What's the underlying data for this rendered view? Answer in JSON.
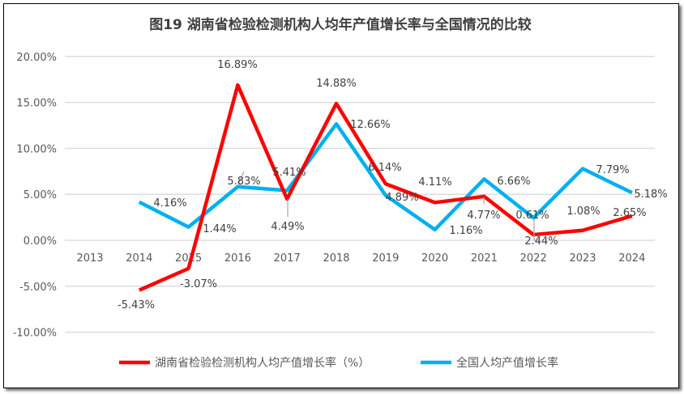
{
  "chart_data": {
    "type": "line",
    "title": "图19  湖南省检验检测机构人均年产值增长率与全国情况的比较",
    "categories": [
      "2013",
      "2014",
      "2015",
      "2016",
      "2017",
      "2018",
      "2019",
      "2020",
      "2021",
      "2022",
      "2023",
      "2024"
    ],
    "ylim": [
      -10,
      20
    ],
    "yticks": [
      "-10.00%",
      "-5.00%",
      "0.00%",
      "5.00%",
      "10.00%",
      "15.00%",
      "20.00%"
    ],
    "grid": true,
    "legend_position": "bottom",
    "series": [
      {
        "name": "湖南省检验检测机构人均产值增长率（%）",
        "color": "#FF0000",
        "values": [
          null,
          -5.43,
          -3.07,
          16.89,
          4.49,
          14.88,
          6.14,
          4.11,
          4.77,
          0.61,
          1.08,
          2.65
        ],
        "labels": [
          "",
          "-5.43%",
          "-3.07%",
          "16.89%",
          "4.49%",
          "14.88%",
          "6.14%",
          "4.11%",
          "4.77%",
          "0.61%",
          "1.08%",
          "2.65%"
        ]
      },
      {
        "name": "全国人均产值增长率",
        "color": "#00B0F0",
        "values": [
          null,
          4.16,
          1.44,
          5.83,
          5.41,
          12.66,
          4.89,
          1.16,
          6.66,
          2.44,
          7.79,
          5.18
        ],
        "labels": [
          "",
          "4.16%",
          "1.44%",
          "5.83%",
          "5.41%",
          "12.66%",
          "4.89%",
          "1.16%",
          "6.66%",
          "2.44%",
          "7.79%",
          "5.18%"
        ]
      }
    ]
  }
}
